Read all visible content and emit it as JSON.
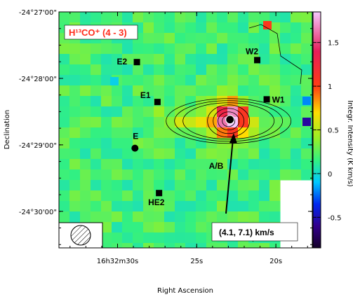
{
  "chart_data": {
    "type": "heatmap",
    "title": "H¹³CO⁺ (4 - 3)",
    "velocity_range": "(4.1, 7.1) km/s",
    "xlabel": "Right Ascension",
    "ylabel": "Declination",
    "colorbar_label": "Integr. Intensity (K km/s)",
    "colorbar_range": [
      -0.85,
      1.85
    ],
    "colorbar_ticks": [
      "1.5",
      "1",
      "0.5",
      "0",
      "-0.5"
    ],
    "colorbar_tick_values": [
      1.5,
      1.0,
      0.5,
      0.0,
      -0.5
    ],
    "x_ticks": [
      "16h32m30s",
      "25s",
      "20s"
    ],
    "x_tick_values": [
      30,
      25,
      20
    ],
    "y_ticks": [
      "-24°27'00\"",
      "-24°28'00\"",
      "-24°29'00\"",
      "-24°30'00\""
    ],
    "y_tick_values": [
      -24.45,
      -24.4667,
      -24.4833,
      -24.5
    ],
    "ra_range": [
      33.7,
      17.7
    ],
    "dec_range_arcmin": [
      27.0,
      30.55
    ],
    "grid": false,
    "sources": [
      {
        "name": "E2",
        "ra": 28.8,
        "dec": 27.75,
        "marker": "square"
      },
      {
        "name": "W2",
        "ra": 21.2,
        "dec": 27.72,
        "marker": "square"
      },
      {
        "name": "E1",
        "ra": 27.5,
        "dec": 28.35,
        "marker": "square"
      },
      {
        "name": "W1",
        "ra": 20.6,
        "dec": 28.31,
        "marker": "square"
      },
      {
        "name": "E",
        "ra": 28.9,
        "dec": 29.05,
        "marker": "circle"
      },
      {
        "name": "HE2",
        "ra": 27.4,
        "dec": 29.72,
        "marker": "square"
      },
      {
        "name": "A/B",
        "ra": 22.9,
        "dec": 28.62,
        "marker": "circle"
      }
    ],
    "peak_intensity": 1.8
  }
}
